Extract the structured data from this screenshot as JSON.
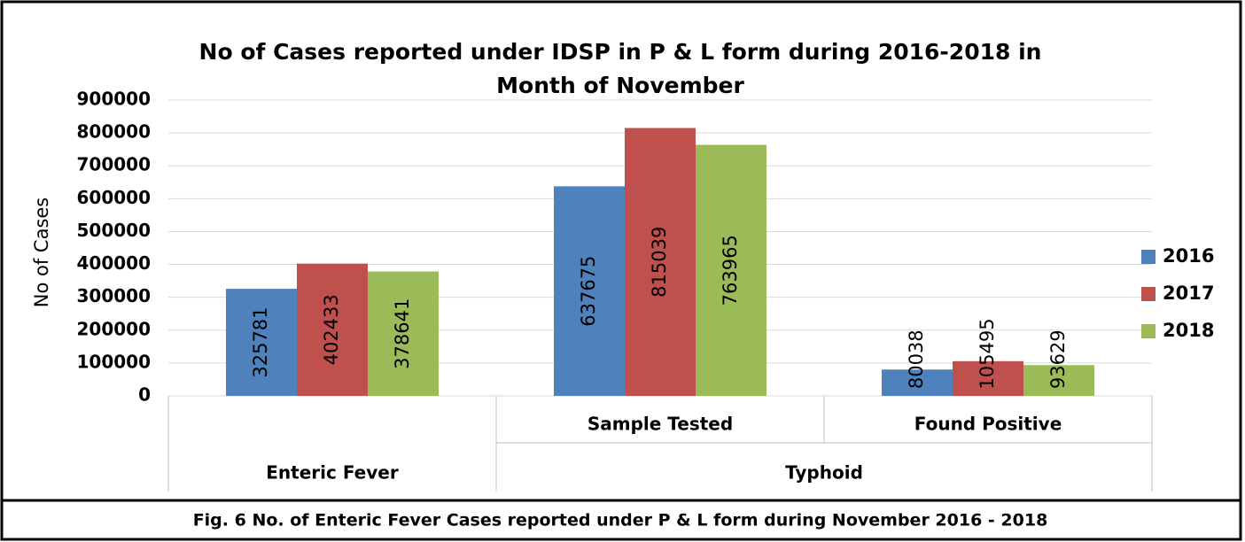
{
  "chart_data": {
    "type": "bar",
    "title": "No of Cases reported under IDSP in P & L form during 2016-2018 in",
    "subtitle": "Month of November",
    "y_label": "No of Cases",
    "categories": [
      "Enteric Fever",
      "Sample Tested",
      "Found Positive"
    ],
    "category_groups": [
      {
        "name": "Typhoid",
        "from": 1,
        "count": 2
      }
    ],
    "series": [
      {
        "name": "2016",
        "color": "#4f81bd",
        "values": [
          325781,
          637675,
          80038
        ]
      },
      {
        "name": "2017",
        "color": "#c0504d",
        "values": [
          402433,
          815039,
          105495
        ]
      },
      {
        "name": "2018",
        "color": "#9bbb59",
        "values": [
          378641,
          763965,
          93629
        ]
      }
    ],
    "ylim": [
      0,
      900000
    ],
    "yticks": [
      0,
      100000,
      200000,
      300000,
      400000,
      500000,
      600000,
      700000,
      800000,
      900000
    ],
    "grid": true,
    "legend": "right",
    "caption": "Fig. 6 No. of Enteric Fever Cases reported under P & L form during November 2016 - 2018"
  }
}
